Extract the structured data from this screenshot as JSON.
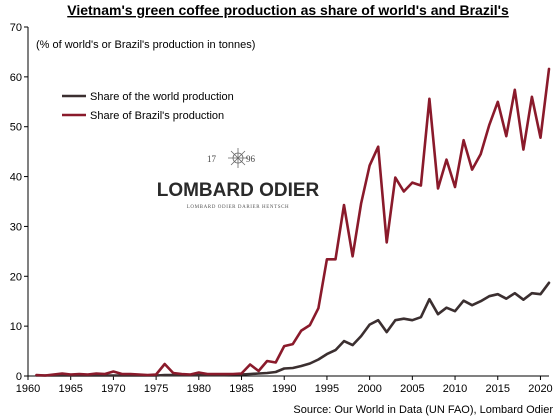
{
  "chart_data": {
    "type": "line",
    "title": "Vietnam's green coffee production as share of world's and Brazil's",
    "subtitle": "(% of world's or Brazil's production in tonnes)",
    "source": "Source: Our World in Data (UN FAO), Lombard Odier",
    "xlim": [
      1960,
      2021
    ],
    "ylim": [
      0,
      70
    ],
    "x_ticks": [
      1960,
      1965,
      1970,
      1975,
      1980,
      1985,
      1990,
      1995,
      2000,
      2005,
      2010,
      2015,
      2020
    ],
    "y_ticks": [
      0,
      10,
      20,
      30,
      40,
      50,
      60,
      70
    ],
    "grid": false,
    "legend_position": "upper-left",
    "x": [
      1961,
      1962,
      1963,
      1964,
      1965,
      1966,
      1967,
      1968,
      1969,
      1970,
      1971,
      1972,
      1973,
      1974,
      1975,
      1976,
      1977,
      1978,
      1979,
      1980,
      1981,
      1982,
      1983,
      1984,
      1985,
      1986,
      1987,
      1988,
      1989,
      1990,
      1991,
      1992,
      1993,
      1994,
      1995,
      1996,
      1997,
      1998,
      1999,
      2000,
      2001,
      2002,
      2003,
      2004,
      2005,
      2006,
      2007,
      2008,
      2009,
      2010,
      2011,
      2012,
      2013,
      2014,
      2015,
      2016,
      2017,
      2018,
      2019,
      2020,
      2021
    ],
    "series": [
      {
        "name": "Share of the world production",
        "color": "#3b2f30",
        "values": [
          0.1,
          0.1,
          0.1,
          0.1,
          0.1,
          0.1,
          0.1,
          0.1,
          0.1,
          0.1,
          0.1,
          0.1,
          0.1,
          0.1,
          0.1,
          0.2,
          0.2,
          0.2,
          0.2,
          0.2,
          0.2,
          0.2,
          0.2,
          0.3,
          0.3,
          0.4,
          0.5,
          0.6,
          0.8,
          1.5,
          1.6,
          2.0,
          2.5,
          3.3,
          4.4,
          5.2,
          7.0,
          6.2,
          8.0,
          10.3,
          11.2,
          8.8,
          11.2,
          11.5,
          11.2,
          11.8,
          15.4,
          12.4,
          13.7,
          13.0,
          15.1,
          14.2,
          15.0,
          16.0,
          16.4,
          15.5,
          16.6,
          15.3,
          16.6,
          16.4,
          18.7
        ]
      },
      {
        "name": "Share of Brazil's production",
        "color": "#8a1a2b",
        "values": [
          0.2,
          0.1,
          0.3,
          0.5,
          0.3,
          0.4,
          0.3,
          0.5,
          0.4,
          0.9,
          0.4,
          0.4,
          0.3,
          0.2,
          0.3,
          2.4,
          0.6,
          0.4,
          0.3,
          0.7,
          0.4,
          0.4,
          0.4,
          0.4,
          0.5,
          2.3,
          1.0,
          3.0,
          2.7,
          6.0,
          6.4,
          9.1,
          10.2,
          13.6,
          23.4,
          23.4,
          34.3,
          24.0,
          34.6,
          42.2,
          46.0,
          26.8,
          39.8,
          37.0,
          38.8,
          38.2,
          55.6,
          37.6,
          43.4,
          37.9,
          47.3,
          41.4,
          44.5,
          50.3,
          55.0,
          48.1,
          57.4,
          45.4,
          56.0,
          47.8,
          61.6
        ]
      }
    ]
  },
  "logo": {
    "year_left": "17",
    "year_right": "96",
    "name": "LOMBARD ODIER",
    "tagline": "LOMBARD ODIER DARIER HENTSCH"
  }
}
